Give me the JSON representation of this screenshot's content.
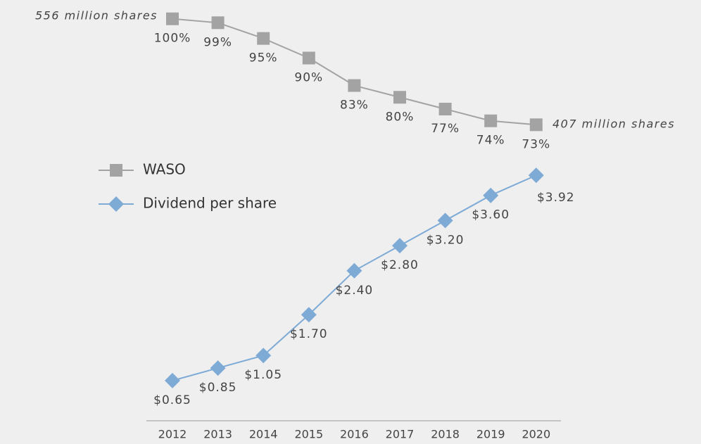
{
  "chart_data": {
    "type": "line",
    "categories": [
      "2012",
      "2013",
      "2014",
      "2015",
      "2016",
      "2017",
      "2018",
      "2019",
      "2020"
    ],
    "series": [
      {
        "name": "WASO",
        "color": "#a3a3a3",
        "marker": "square",
        "values": [
          100,
          99,
          95,
          90,
          83,
          80,
          77,
          74,
          73
        ],
        "value_labels": [
          "100%",
          "99%",
          "95%",
          "90%",
          "83%",
          "80%",
          "77%",
          "74%",
          "73%"
        ]
      },
      {
        "name": "Dividend per share",
        "color": "#7eaad6",
        "marker": "diamond",
        "axis": "y2",
        "values": [
          0.65,
          0.85,
          1.05,
          1.7,
          2.4,
          2.8,
          3.2,
          3.6,
          3.92
        ],
        "value_labels": [
          "$0.65",
          "$0.85",
          "$1.05",
          "$1.70",
          "$2.40",
          "$2.80",
          "$3.20",
          "$3.60",
          "$3.92"
        ]
      }
    ],
    "ylim": [
      -1,
      103
    ],
    "y2lim": [
      0.1,
      6.6
    ],
    "annotations": [
      "556 million shares",
      "407 million shares"
    ]
  }
}
